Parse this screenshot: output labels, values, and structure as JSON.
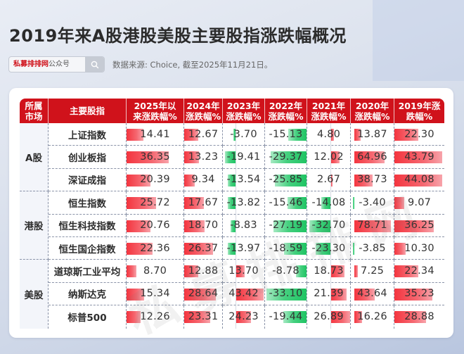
{
  "header": {
    "title": "2019年来A股港股美股主要股指涨跌幅概况",
    "search_brand": "私募排排网",
    "search_suffix": "公众号",
    "search_icon": "search-icon",
    "source": "数据来源: Choice, 截至2025年11月21日。"
  },
  "watermark": "私募排排网",
  "colors": {
    "header_red": "#d0121b",
    "positive_bar": "#f4353f",
    "negative_bar": "#1fc463"
  },
  "table": {
    "columns": [
      "所属市场",
      "主要股指",
      "2025年以来涨跌幅%",
      "2024年涨跌幅%",
      "2023年涨跌幅%",
      "2022年涨跌幅%",
      "2021年涨跌幅%",
      "2020年涨跌幅%",
      "2019年涨跌幅%"
    ],
    "column_labels": [
      [
        "所属",
        "市场"
      ],
      [
        "主要股指",
        ""
      ],
      [
        "2025年以",
        "来涨跌幅%"
      ],
      [
        "2024年",
        "涨跌幅%"
      ],
      [
        "2023年",
        "涨跌幅%"
      ],
      [
        "2022年",
        "涨跌幅%"
      ],
      [
        "2021年",
        "涨跌幅%"
      ],
      [
        "2020年",
        "涨跌幅%"
      ],
      [
        "2019年涨",
        "跌幅%"
      ]
    ],
    "groups": [
      {
        "market": "A股",
        "rows": [
          {
            "name": "上证指数",
            "values": [
              "14.41",
              "12.67",
              "-3.70",
              "-15.13",
              "4.80",
              "13.87",
              "22.30"
            ]
          },
          {
            "name": "创业板指",
            "values": [
              "36.35",
              "13.23",
              "-19.41",
              "-29.37",
              "12.02",
              "64.96",
              "43.79"
            ]
          },
          {
            "name": "深证成指",
            "values": [
              "20.39",
              "9.34",
              "-13.54",
              "-25.85",
              "2.67",
              "38.73",
              "44.08"
            ]
          }
        ]
      },
      {
        "market": "港股",
        "rows": [
          {
            "name": "恒生指数",
            "values": [
              "25.72",
              "17.67",
              "-13.82",
              "-15.46",
              "-14.08",
              "-3.40",
              "9.07"
            ]
          },
          {
            "name": "恒生科技指数",
            "values": [
              "20.76",
              "18.70",
              "-8.83",
              "-27.19",
              "-32.70",
              "78.71",
              "36.25"
            ]
          },
          {
            "name": "恒生国企指数",
            "values": [
              "22.36",
              "26.37",
              "-13.97",
              "-18.59",
              "-23.30",
              "-3.85",
              "10.30"
            ]
          }
        ]
      },
      {
        "market": "美股",
        "rows": [
          {
            "name": "道琼斯工业平均",
            "values": [
              "8.70",
              "12.88",
              "13.70",
              "-8.78",
              "18.73",
              "7.25",
              "22.34"
            ]
          },
          {
            "name": "纳斯达克",
            "values": [
              "15.34",
              "28.64",
              "43.42",
              "-33.10",
              "21.39",
              "43.64",
              "35.23"
            ]
          },
          {
            "name": "标普500",
            "values": [
              "12.26",
              "23.31",
              "24.23",
              "-19.44",
              "26.89",
              "16.26",
              "28.88"
            ]
          }
        ]
      }
    ]
  },
  "chart_data": {
    "type": "table",
    "title": "2019年来A股港股美股主要股指涨跌幅概况",
    "subtitle": "数据来源: Choice, 截至2025年11月21日。",
    "categories": [
      "2025年以来",
      "2024年",
      "2023年",
      "2022年",
      "2021年",
      "2020年",
      "2019年"
    ],
    "unit": "%",
    "series": [
      {
        "name": "上证指数",
        "market": "A股",
        "values": [
          14.41,
          12.67,
          -3.7,
          -15.13,
          4.8,
          13.87,
          22.3
        ]
      },
      {
        "name": "创业板指",
        "market": "A股",
        "values": [
          36.35,
          13.23,
          -19.41,
          -29.37,
          12.02,
          64.96,
          43.79
        ]
      },
      {
        "name": "深证成指",
        "market": "A股",
        "values": [
          20.39,
          9.34,
          -13.54,
          -25.85,
          2.67,
          38.73,
          44.08
        ]
      },
      {
        "name": "恒生指数",
        "market": "港股",
        "values": [
          25.72,
          17.67,
          -13.82,
          -15.46,
          -14.08,
          -3.4,
          9.07
        ]
      },
      {
        "name": "恒生科技指数",
        "market": "港股",
        "values": [
          20.76,
          18.7,
          -8.83,
          -27.19,
          -32.7,
          78.71,
          36.25
        ]
      },
      {
        "name": "恒生国企指数",
        "market": "港股",
        "values": [
          22.36,
          26.37,
          -13.97,
          -18.59,
          -23.3,
          -3.85,
          10.3
        ]
      },
      {
        "name": "道琼斯工业平均",
        "market": "美股",
        "values": [
          8.7,
          12.88,
          13.7,
          -8.78,
          18.73,
          7.25,
          22.34
        ]
      },
      {
        "name": "纳斯达克",
        "market": "美股",
        "values": [
          15.34,
          28.64,
          43.42,
          -33.1,
          21.39,
          43.64,
          35.23
        ]
      },
      {
        "name": "标普500",
        "market": "美股",
        "values": [
          12.26,
          23.31,
          24.23,
          -19.44,
          26.89,
          16.26,
          28.88
        ]
      }
    ]
  }
}
